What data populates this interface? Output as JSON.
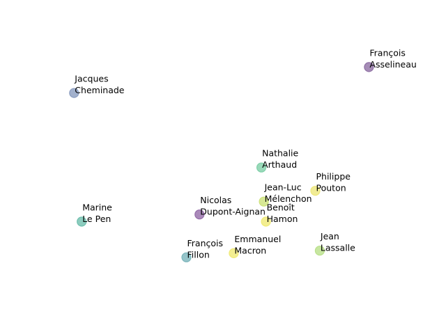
{
  "chart_data": {
    "type": "scatter",
    "title": "",
    "xlabel": "",
    "ylabel": "",
    "axes_visible": false,
    "grid": false,
    "legend": "none",
    "xlim": [
      0,
      100
    ],
    "ylim": [
      0,
      100
    ],
    "points": [
      {
        "label_line1": "François",
        "label_line2": "Asselineau",
        "x": 90.6,
        "y": 89.6,
        "color": "#8e6fa4"
      },
      {
        "label_line1": "Jacques",
        "label_line2": "Cheminade",
        "x": 5.3,
        "y": 79.5,
        "color": "#8b9dc0"
      },
      {
        "label_line1": "Nathalie",
        "label_line2": "Arthaud",
        "x": 59.5,
        "y": 50.5,
        "color": "#7fcfa8"
      },
      {
        "label_line1": "Philippe",
        "label_line2": "Pouton",
        "x": 75.1,
        "y": 41.4,
        "color": "#eee77a"
      },
      {
        "label_line1": "Jean-Luc",
        "label_line2": "Mélenchon",
        "x": 60.2,
        "y": 37.2,
        "color": "#cde27a"
      },
      {
        "label_line1": "Nicolas",
        "label_line2": "Dupont-Aignan",
        "x": 41.6,
        "y": 32.2,
        "color": "#946ca8"
      },
      {
        "label_line1": "Marine",
        "label_line2": "Le Pen",
        "x": 7.5,
        "y": 29.4,
        "color": "#6fbfae"
      },
      {
        "label_line1": "Benoît",
        "label_line2": "Hamon",
        "x": 60.8,
        "y": 29.4,
        "color": "#f0ea75"
      },
      {
        "label_line1": "Jean",
        "label_line2": "Lassalle",
        "x": 76.4,
        "y": 18.1,
        "color": "#b9e08a"
      },
      {
        "label_line1": "Emmanuel",
        "label_line2": "Macron",
        "x": 51.5,
        "y": 17.1,
        "color": "#f0ea75"
      },
      {
        "label_line1": "François",
        "label_line2": "Fillon",
        "x": 37.8,
        "y": 15.5,
        "color": "#7bb5bb"
      }
    ]
  }
}
